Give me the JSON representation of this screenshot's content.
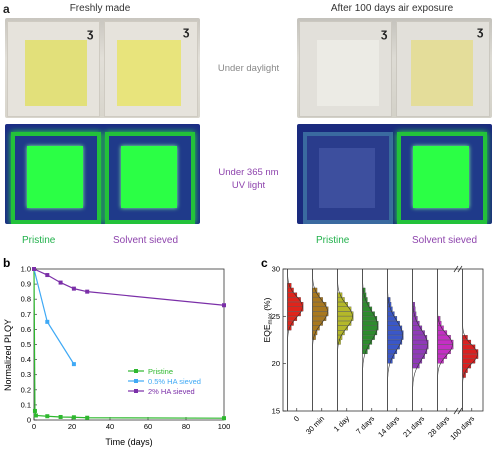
{
  "panel_a": {
    "letter": "a",
    "left_title": "Freshly made",
    "right_title": "After 100 days air exposure",
    "label_daylight": "Under daylight",
    "label_uv_line1": "Under 365 nm",
    "label_uv_line2": "UV light",
    "caption_left_pristine": "Pristine",
    "caption_left_sieved": "Solvent sieved",
    "caption_right_pristine": "Pristine",
    "caption_right_sieved": "Solvent sieved",
    "colors": {
      "green_text": "#22b14c",
      "purple_text": "#8e44ad",
      "uv_bg": "#1a2a8a",
      "uv_green": "#2cff4a"
    }
  },
  "chart_data": [
    {
      "panel": "b",
      "type": "line",
      "xlabel": "Time (days)",
      "ylabel": "Normalized PLQY",
      "xlim": [
        0,
        100
      ],
      "ylim": [
        0,
        1.0
      ],
      "xticks": [
        0,
        20,
        40,
        60,
        80,
        100
      ],
      "yticks": [
        0,
        0.1,
        0.2,
        0.3,
        0.4,
        0.5,
        0.6,
        0.7,
        0.8,
        0.9,
        1.0
      ],
      "legend_position": "lower-right",
      "series": [
        {
          "name": "Pristine",
          "color": "#2eb82e",
          "x": [
            0,
            0.5,
            1,
            7,
            14,
            21,
            28,
            100
          ],
          "y": [
            1.0,
            0.06,
            0.03,
            0.025,
            0.02,
            0.018,
            0.015,
            0.012
          ]
        },
        {
          "name": "0.5% HA sieved",
          "color": "#3fa9f5",
          "x": [
            0,
            7,
            21
          ],
          "y": [
            1.0,
            0.65,
            0.37
          ]
        },
        {
          "name": "2% HA sieved",
          "color": "#7b2fa8",
          "x": [
            0,
            7,
            14,
            21,
            28,
            100
          ],
          "y": [
            1.0,
            0.96,
            0.91,
            0.87,
            0.85,
            0.76
          ]
        }
      ]
    },
    {
      "panel": "c",
      "type": "bar",
      "ylabel": "EQE",
      "ylabel_sub": "max",
      "ylabel_unit": " (%)",
      "ylim": [
        15,
        30
      ],
      "yticks": [
        15,
        20,
        25,
        30
      ],
      "categories": [
        "0",
        "30 min",
        "1 day",
        "7 days",
        "14 days",
        "21 days",
        "28 days",
        "100 days"
      ],
      "axis_break": "between 28 days and 100 days",
      "colors": [
        "#e0241b",
        "#a8781e",
        "#b4b82a",
        "#2e8b2e",
        "#3a57c8",
        "#8f3ab8",
        "#c42fc4",
        "#d92020"
      ],
      "series": [
        {
          "name": "bin_min",
          "values": [
            23.5,
            22.5,
            22,
            21,
            20,
            19.5,
            20,
            18.5
          ]
        },
        {
          "name": "bin_max",
          "values": [
            28.5,
            28,
            27.5,
            28,
            27,
            26.5,
            25,
            23
          ]
        },
        {
          "name": "mean",
          "values": [
            26,
            25.5,
            25,
            24,
            23,
            22,
            22,
            21
          ]
        }
      ]
    }
  ]
}
